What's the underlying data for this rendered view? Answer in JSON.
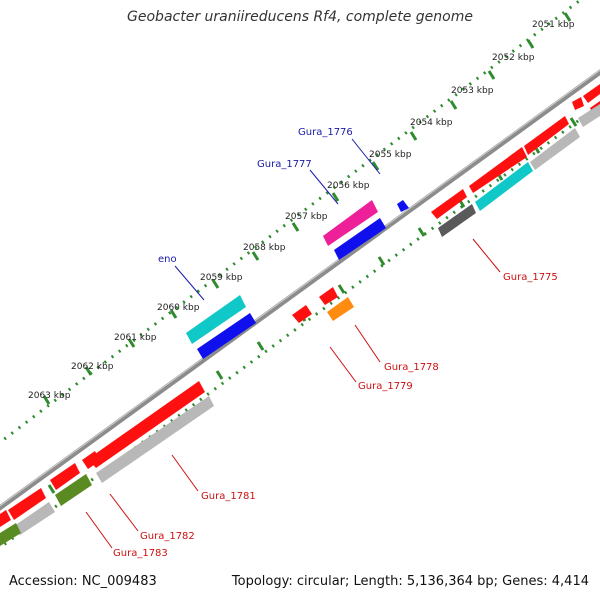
{
  "title": "Geobacter uraniireducens Rf4, complete genome",
  "footer": {
    "accession": "Accession: NC_009483",
    "topology": "Topology: circular; Length: 5,136,364 bp; Genes: 4,414"
  },
  "ticks": [
    "2051 kbp",
    "2052 kbp",
    "2053 kbp",
    "2054 kbp",
    "2055 kbp",
    "2056 kbp",
    "2057 kbp",
    "2058 kbp",
    "2059 kbp",
    "2060 kbp",
    "2061 kbp",
    "2062 kbp",
    "2063 kbp"
  ],
  "gene_labels": [
    {
      "text": "Gura_1776",
      "color": "#1a1aa8"
    },
    {
      "text": "Gura_1777",
      "color": "#1a1aa8"
    },
    {
      "text": "eno",
      "color": "#1a1aa8"
    },
    {
      "text": "Gura_1775",
      "color": "#cc1111"
    },
    {
      "text": "Gura_1778",
      "color": "#cc1111"
    },
    {
      "text": "Gura_1779",
      "color": "#cc1111"
    },
    {
      "text": "Gura_1781",
      "color": "#cc1111"
    },
    {
      "text": "Gura_1782",
      "color": "#cc1111"
    },
    {
      "text": "Gura_1783",
      "color": "#cc1111"
    }
  ],
  "colors": {
    "backbone": "#8c8c8c",
    "tick_dots": "#2e8b2e",
    "red": "#ff1010",
    "blue": "#1010ee",
    "cyan": "#10c8c8",
    "magenta": "#ee2099",
    "orange": "#ff8c10",
    "olive": "#5a8a22",
    "gray": "#b8b8b8",
    "darkgray": "#5a5a5a"
  }
}
